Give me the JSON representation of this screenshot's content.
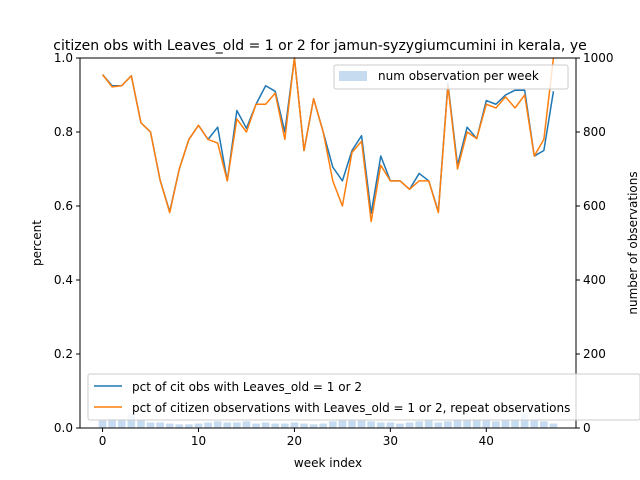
{
  "chart_data": {
    "type": "line",
    "title": "citizen obs with Leaves_old = 1 or 2 for jamun-syzygiumcumini in kerala, ye",
    "xlabel": "week index",
    "ylabel": "percent",
    "y2label": "number of observations",
    "xlim": [
      -2.35,
      49.35
    ],
    "ylim": [
      0,
      1.0
    ],
    "y2lim": [
      0,
      1000
    ],
    "xticks": [
      0,
      10,
      20,
      30,
      40
    ],
    "yticks": [
      0.0,
      0.2,
      0.4,
      0.6,
      0.8,
      1.0
    ],
    "y2ticks": [
      0,
      200,
      400,
      600,
      800,
      1000
    ],
    "grid": false,
    "legend_lines_placement": "lower-right",
    "legend_bars_placement": "upper-right",
    "bars": {
      "name": "num observation per week",
      "color": "#c6dbef",
      "values": [
        20,
        25,
        25,
        38,
        20,
        15,
        15,
        12,
        10,
        10,
        12,
        15,
        18,
        15,
        15,
        18,
        12,
        15,
        12,
        12,
        15,
        12,
        10,
        12,
        18,
        20,
        20,
        20,
        18,
        15,
        15,
        12,
        15,
        18,
        20,
        15,
        18,
        22,
        20,
        22,
        20,
        18,
        20,
        22,
        40,
        20,
        18,
        12
      ]
    },
    "series": [
      {
        "name": "pct of cit obs with Leaves_old = 1 or 2",
        "color": "#1f77b4",
        "values": [
          0.955,
          0.925,
          0.925,
          0.952,
          0.825,
          0.8,
          0.67,
          0.585,
          0.7,
          0.78,
          0.818,
          0.78,
          0.813,
          0.668,
          0.858,
          0.81,
          0.875,
          0.925,
          0.91,
          0.8,
          1.0,
          0.75,
          0.89,
          0.8,
          0.705,
          0.668,
          0.75,
          0.79,
          0.58,
          0.735,
          0.668,
          0.668,
          0.645,
          0.688,
          0.668,
          0.585,
          0.93,
          0.71,
          0.813,
          0.782,
          0.885,
          0.875,
          0.9,
          0.913,
          0.913,
          0.735,
          0.75,
          0.91
        ]
      },
      {
        "name": "pct of citizen observations with Leaves_old = 1 or 2, repeat observations",
        "color": "#ff7f0e",
        "values": [
          0.955,
          0.922,
          0.925,
          0.952,
          0.825,
          0.8,
          0.67,
          0.582,
          0.7,
          0.78,
          0.818,
          0.78,
          0.77,
          0.668,
          0.835,
          0.8,
          0.875,
          0.875,
          0.905,
          0.78,
          1.0,
          0.75,
          0.89,
          0.8,
          0.668,
          0.6,
          0.745,
          0.775,
          0.558,
          0.71,
          0.668,
          0.668,
          0.645,
          0.668,
          0.668,
          0.582,
          0.925,
          0.7,
          0.8,
          0.782,
          0.875,
          0.865,
          0.895,
          0.865,
          0.9,
          0.735,
          0.78,
          1.0
        ]
      }
    ]
  }
}
